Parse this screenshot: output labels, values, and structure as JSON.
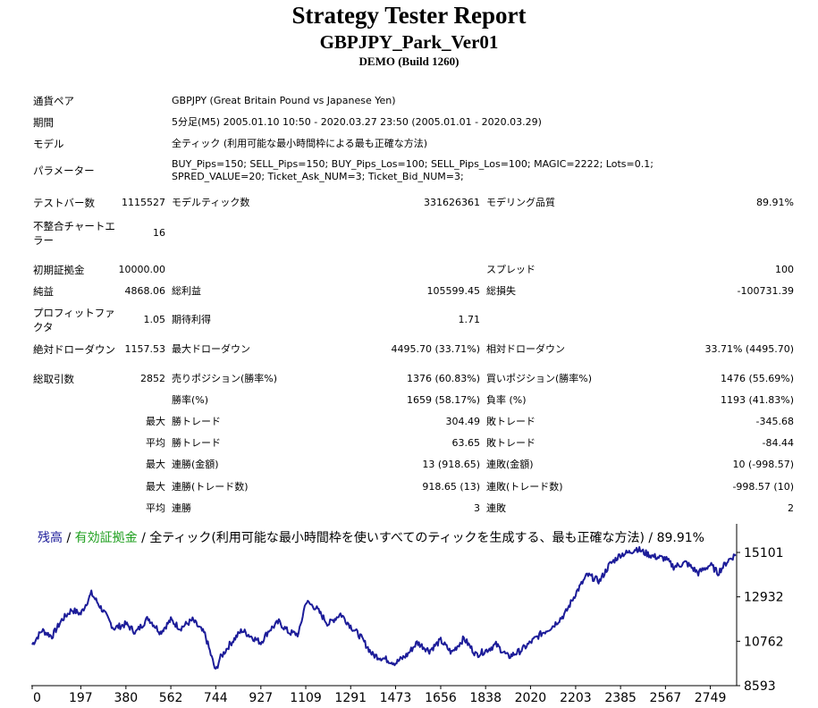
{
  "header": {
    "title": "Strategy Tester Report",
    "subtitle": "GBPJPY_Park_Ver01",
    "build": "DEMO (Build 1260)"
  },
  "info": [
    {
      "label": "通貨ペア",
      "value": "GBPJPY (Great Britain Pound vs Japanese Yen)"
    },
    {
      "label": "期間",
      "value": "5分足(M5) 2005.01.10 10:50 - 2020.03.27 23:50 (2005.01.01 - 2020.03.29)"
    },
    {
      "label": "モデル",
      "value": "全ティック (利用可能な最小時間枠による最も正確な方法)"
    },
    {
      "label": "パラメーター",
      "value": "BUY_Pips=150; SELL_Pips=150; BUY_Pips_Los=100; SELL_Pips_Los=100; MAGIC=2222; Lots=0.1; SPRED_VALUE=20; Ticket_Ask_NUM=3; Ticket_Bid_NUM=3;"
    }
  ],
  "stats": {
    "bars_label": "テストバー数",
    "bars_value": "1115527",
    "ticks_label": "モデルティック数",
    "ticks_value": "331626361",
    "quality_label": "モデリング品質",
    "quality_value": "89.91%",
    "mismatch_label": "不整合チャートエラー",
    "mismatch_value": "16",
    "deposit_label": "初期証拠金",
    "deposit_value": "10000.00",
    "spread_label": "スプレッド",
    "spread_value": "100",
    "net_label": "純益",
    "net_value": "4868.06",
    "gross_profit_label": "総利益",
    "gross_profit_value": "105599.45",
    "gross_loss_label": "総損失",
    "gross_loss_value": "-100731.39",
    "pf_label": "プロフィットファクタ",
    "pf_value": "1.05",
    "expected_label": "期待利得",
    "expected_value": "1.71",
    "abs_dd_label": "絶対ドローダウン",
    "abs_dd_value": "1157.53",
    "max_dd_label": "最大ドローダウン",
    "max_dd_value": "4495.70 (33.71%)",
    "rel_dd_label": "相対ドローダウン",
    "rel_dd_value": "33.71% (4495.70)",
    "trades_label": "総取引数",
    "trades_value": "2852",
    "short_label": "売りポジション(勝率%)",
    "short_value": "1376 (60.83%)",
    "long_label": "買いポジション(勝率%)",
    "long_value": "1476 (55.69%)",
    "win_label": "勝率(%)",
    "win_value": "1659 (58.17%)",
    "loss_label": "負率 (%)",
    "loss_value": "1193 (41.83%)",
    "max_label": "最大",
    "avg_label": "平均",
    "largest_win_label": "勝トレード",
    "largest_win_value": "304.49",
    "largest_loss_label": "敗トレード",
    "largest_loss_value": "-345.68",
    "avg_win_label": "勝トレード",
    "avg_win_value": "63.65",
    "avg_loss_label": "敗トレード",
    "avg_loss_value": "-84.44",
    "cons_wins_label": "連勝(金額)",
    "cons_wins_value": "13 (918.65)",
    "cons_losses_label": "連敗(金額)",
    "cons_losses_value": "10 (-998.57)",
    "cons_profit_label": "連勝(トレード数)",
    "cons_profit_value": "918.65 (13)",
    "cons_loss_label": "連敗(トレード数)",
    "cons_loss_value": "-998.57 (10)",
    "avg_cons_wins_label": "連勝",
    "avg_cons_wins_value": "3",
    "avg_cons_losses_label": "連敗",
    "avg_cons_losses_value": "2"
  },
  "chart_caption": {
    "balance": "残高",
    "sep1": " / ",
    "equity": "有効証拠金",
    "sep2": " / ",
    "rest": "全ティック(利用可能な最小時間枠を使いすべてのティックを生成する、最も正確な方法) / 89.91%"
  },
  "colors": {
    "balance": "#1c1c99",
    "equity": "#20a020"
  },
  "chart_data": {
    "type": "line",
    "x_ticks": [
      "0",
      "197",
      "380",
      "562",
      "744",
      "927",
      "1109",
      "1291",
      "1473",
      "1656",
      "1838",
      "2020",
      "2203",
      "2385",
      "2567",
      "2749"
    ],
    "y_ticks": [
      "15101",
      "12932",
      "10762",
      "8593"
    ],
    "xlim": [
      0,
      2852
    ],
    "ylim": [
      8593,
      15101
    ],
    "series": [
      {
        "x": [
          0,
          40,
          80,
          120,
          160,
          197,
          240,
          290,
          330,
          380,
          420,
          470,
          520,
          562,
          600,
          650,
          700,
          744,
          760,
          800,
          850,
          900,
          927,
          960,
          1000,
          1040,
          1080,
          1109,
          1150,
          1200,
          1250,
          1291,
          1330,
          1380,
          1430,
          1473,
          1520,
          1560,
          1610,
          1656,
          1700,
          1750,
          1800,
          1838,
          1880,
          1930,
          1980,
          2020,
          2060,
          2110,
          2160,
          2203,
          2250,
          2300,
          2340,
          2385,
          2420,
          2450,
          2480,
          2520,
          2567,
          2600,
          2650,
          2700,
          2749,
          2780,
          2820,
          2852
        ],
        "y": [
          10600,
          11300,
          11000,
          11800,
          12300,
          12100,
          13100,
          12200,
          11400,
          11600,
          11200,
          11900,
          11200,
          11800,
          11400,
          11800,
          11100,
          9300,
          9900,
          10600,
          11300,
          10900,
          10700,
          11300,
          11700,
          11200,
          11100,
          12700,
          12400,
          11600,
          12100,
          11500,
          11000,
          10100,
          9900,
          9700,
          10100,
          10700,
          10300,
          10800,
          10200,
          10900,
          10100,
          10300,
          10600,
          10000,
          10300,
          10700,
          11100,
          11500,
          12100,
          13100,
          14000,
          13700,
          14500,
          15000,
          15100,
          15300,
          15100,
          14900,
          14800,
          14400,
          14600,
          14100,
          14500,
          14100,
          14700,
          15000
        ]
      }
    ]
  }
}
